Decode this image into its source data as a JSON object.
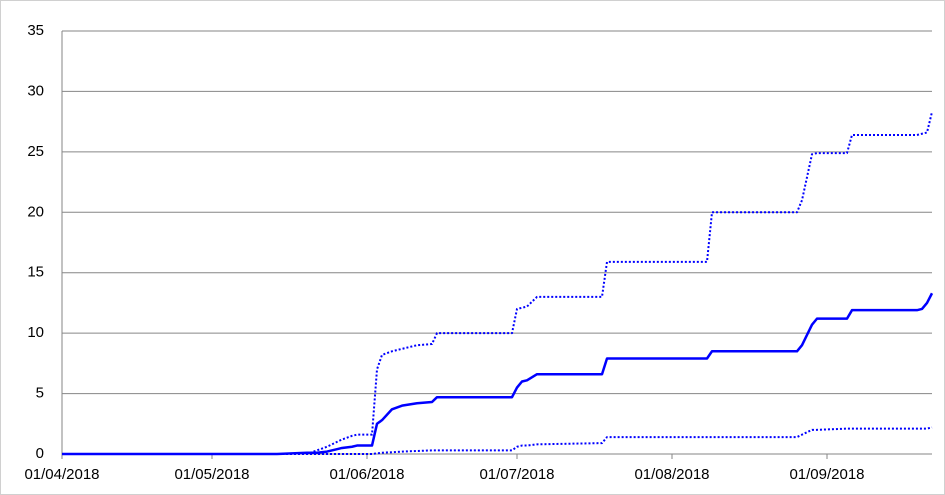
{
  "chart_data": {
    "type": "line",
    "x": [
      "2018-04-01",
      "2018-05-14",
      "2018-05-20",
      "2018-05-22",
      "2018-05-24",
      "2018-05-26",
      "2018-05-27",
      "2018-05-29",
      "2018-05-30",
      "2018-06-02",
      "2018-06-03",
      "2018-06-04",
      "2018-06-06",
      "2018-06-08",
      "2018-06-11",
      "2018-06-14",
      "2018-06-15",
      "2018-06-30",
      "2018-07-01",
      "2018-07-02",
      "2018-07-03",
      "2018-07-05",
      "2018-07-18",
      "2018-07-19",
      "2018-08-08",
      "2018-08-09",
      "2018-08-26",
      "2018-08-27",
      "2018-08-29",
      "2018-08-30",
      "2018-09-05",
      "2018-09-06",
      "2018-09-19",
      "2018-09-20",
      "2018-09-21",
      "2018-09-22"
    ],
    "series": [
      {
        "color": "#0000ff",
        "style": "solid",
        "values": [
          0,
          0,
          0.1,
          0.1,
          0.2,
          0.4,
          0.5,
          0.6,
          0.7,
          0.7,
          2.5,
          2.8,
          3.7,
          4.0,
          4.2,
          4.3,
          4.7,
          4.7,
          5.5,
          6.0,
          6.1,
          6.6,
          6.6,
          7.9,
          7.9,
          8.5,
          8.5,
          9.0,
          10.7,
          11.2,
          11.2,
          11.9,
          11.9,
          12.0,
          12.5,
          13.3
        ]
      },
      {
        "color": "#0000ff",
        "style": "dotted",
        "values": [
          0,
          0,
          0,
          0.3,
          0.6,
          1.0,
          1.2,
          1.5,
          1.6,
          1.6,
          7.0,
          8.2,
          8.5,
          8.7,
          9.0,
          9.1,
          10,
          10,
          12,
          12.1,
          12.2,
          13,
          13,
          15.9,
          15.9,
          20,
          20,
          21,
          24.8,
          24.9,
          24.9,
          26.4,
          26.4,
          26.5,
          26.6,
          28.3
        ]
      },
      {
        "color": "#0000ff",
        "style": "dotted",
        "values": [
          0,
          0,
          0,
          0,
          0,
          0,
          0,
          0,
          0,
          0,
          0.05,
          0.1,
          0.15,
          0.2,
          0.25,
          0.3,
          0.3,
          0.3,
          0.6,
          0.7,
          0.7,
          0.8,
          0.9,
          1.4,
          1.4,
          1.4,
          1.4,
          1.6,
          2.0,
          2.0,
          2.1,
          2.1,
          2.1,
          2.1,
          2.1,
          2.2
        ]
      }
    ],
    "xlim": [
      "2018-04-01",
      "2018-09-22"
    ],
    "xticks": [
      {
        "value": "2018-04-01",
        "label": "01/04/2018"
      },
      {
        "value": "2018-05-01",
        "label": "01/05/2018"
      },
      {
        "value": "2018-06-01",
        "label": "01/06/2018"
      },
      {
        "value": "2018-07-01",
        "label": "01/07/2018"
      },
      {
        "value": "2018-08-01",
        "label": "01/08/2018"
      },
      {
        "value": "2018-09-01",
        "label": "01/09/2018"
      }
    ],
    "ylim": [
      0,
      35
    ],
    "yticks": [
      0,
      5,
      10,
      15,
      20,
      25,
      30,
      35
    ],
    "grid": true
  }
}
